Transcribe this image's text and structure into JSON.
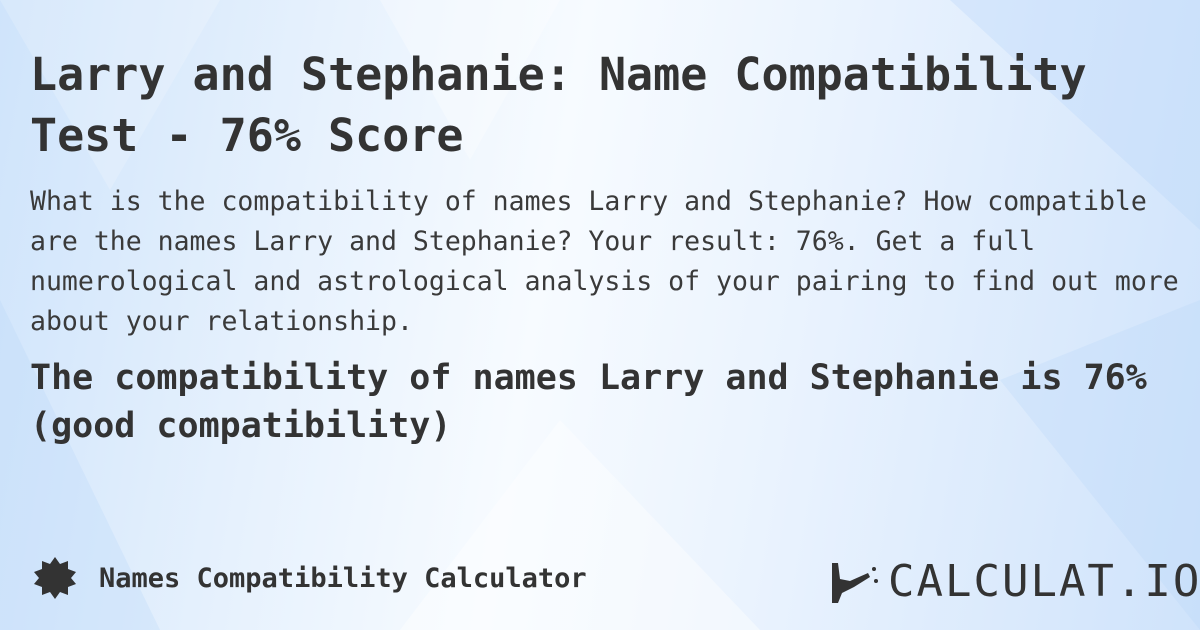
{
  "title": "Larry and Stephanie: Name Compatibility Test - 76% Score",
  "description": "What is the compatibility of names Larry and Stephanie? How compatible are the names Larry and Stephanie? Your result: 76%. Get a full numerological and astrological analysis of your pairing to find out more about your relationship.",
  "result": "The compatibility of names Larry and Stephanie is 76% (good compatibility)",
  "footer": {
    "calculator_name": "Names Compatibility Calculator",
    "icon": "badge-icon"
  },
  "logo": {
    "text": "CALCULAT.IO"
  },
  "colors": {
    "text": "#333333",
    "background": "#dceafc"
  }
}
